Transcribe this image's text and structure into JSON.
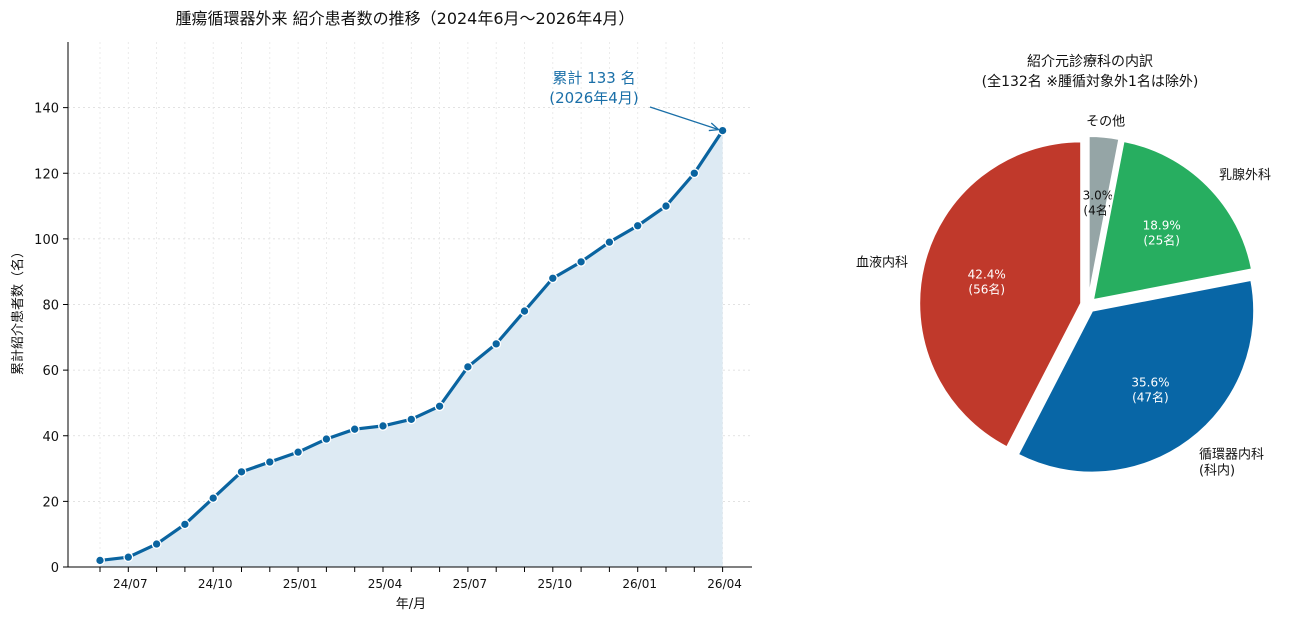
{
  "chart_data": [
    {
      "type": "line",
      "title": "腫瘍循環器外来 紹介患者数の推移（2024年6月～2026年4月）",
      "xlabel": "年/月",
      "ylabel": "累計紹介患者数（名）",
      "ylim": [
        0,
        160
      ],
      "yticks": [
        0,
        20,
        40,
        60,
        80,
        100,
        120,
        140
      ],
      "xtick_labels": [
        "24/07",
        "24/10",
        "25/01",
        "25/04",
        "25/07",
        "25/10",
        "26/01",
        "26/04"
      ],
      "x": [
        "2024-06",
        "2024-07",
        "2024-08",
        "2024-09",
        "2024-10",
        "2024-11",
        "2024-12",
        "2025-01",
        "2025-02",
        "2025-03",
        "2025-04",
        "2025-05",
        "2025-06",
        "2025-07",
        "2025-08",
        "2025-09",
        "2025-10",
        "2025-11",
        "2025-12",
        "2026-01",
        "2026-02",
        "2026-03",
        "2026-04"
      ],
      "values": [
        2,
        3,
        7,
        13,
        21,
        29,
        32,
        35,
        39,
        42,
        43,
        45,
        49,
        61,
        68,
        78,
        88,
        93,
        99,
        104,
        110,
        120,
        133
      ],
      "grid": true,
      "fill_area": true,
      "annotation": {
        "line1": "累計 133 名",
        "line2": "(2026年4月)"
      },
      "colors": {
        "line": "#0a64a0",
        "fill": "#ddeaf3",
        "annotation": "#1a6fa8"
      }
    },
    {
      "type": "pie",
      "title_line1": "紹介元診療科の内訳",
      "title_line2": "(全132名 ※腫循対象外1名は除外)",
      "slices": [
        {
          "label": "その他",
          "value": 4,
          "pct": "3.0%",
          "count": "(4名)",
          "color": "#95a5a6"
        },
        {
          "label": "乳腺外科",
          "value": 25,
          "pct": "18.9%",
          "count": "(25名)",
          "color": "#27ae60"
        },
        {
          "label": "循環器内科\n(科内)",
          "value": 47,
          "pct": "35.6%",
          "count": "(47名)",
          "color": "#0866a6"
        },
        {
          "label": "血液内科",
          "value": 56,
          "pct": "42.4%",
          "count": "(56名)",
          "color": "#c0392b"
        }
      ]
    }
  ]
}
